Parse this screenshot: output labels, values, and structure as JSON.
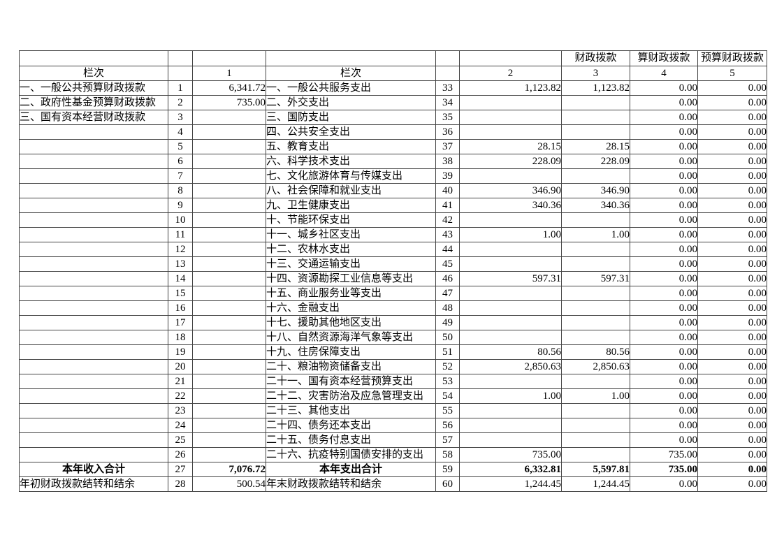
{
  "page": {
    "background_color": "#ffffff",
    "text_color": "#000000",
    "grid_color": "#444444"
  },
  "table": {
    "header_row1": {
      "col3": "财政拨款",
      "col4": "算财政拨款",
      "col5": "预算财政拨款"
    },
    "header_row2": {
      "left_lanci": "栏次",
      "col1": "1",
      "right_lanci": "栏次",
      "col2": "2",
      "col3": "3",
      "col4": "4",
      "col5": "5"
    },
    "rows": [
      {
        "left_label": "一、一般公共预算财政拨款",
        "left_no": "1",
        "col1": "6,341.72",
        "right_label": "一、一般公共服务支出",
        "right_no": "33",
        "col2": "1,123.82",
        "col3": "1,123.82",
        "col4": "0.00",
        "col5": "0.00"
      },
      {
        "left_label": "二、政府性基金预算财政拨款",
        "left_no": "2",
        "col1": "735.00",
        "right_label": "二、外交支出",
        "right_no": "34",
        "col2": "",
        "col3": "",
        "col4": "0.00",
        "col5": "0.00"
      },
      {
        "left_label": "三、国有资本经营财政拨款",
        "left_no": "3",
        "col1": "",
        "right_label": "三、国防支出",
        "right_no": "35",
        "col2": "",
        "col3": "",
        "col4": "0.00",
        "col5": "0.00"
      },
      {
        "left_label": "",
        "left_no": "4",
        "col1": "",
        "right_label": "四、公共安全支出",
        "right_no": "36",
        "col2": "",
        "col3": "",
        "col4": "0.00",
        "col5": "0.00"
      },
      {
        "left_label": "",
        "left_no": "5",
        "col1": "",
        "right_label": "五、教育支出",
        "right_no": "37",
        "col2": "28.15",
        "col3": "28.15",
        "col4": "0.00",
        "col5": "0.00"
      },
      {
        "left_label": "",
        "left_no": "6",
        "col1": "",
        "right_label": "六、科学技术支出",
        "right_no": "38",
        "col2": "228.09",
        "col3": "228.09",
        "col4": "0.00",
        "col5": "0.00"
      },
      {
        "left_label": "",
        "left_no": "7",
        "col1": "",
        "right_label": "七、文化旅游体育与传媒支出",
        "right_no": "39",
        "col2": "",
        "col3": "",
        "col4": "0.00",
        "col5": "0.00"
      },
      {
        "left_label": "",
        "left_no": "8",
        "col1": "",
        "right_label": "八、社会保障和就业支出",
        "right_no": "40",
        "col2": "346.90",
        "col3": "346.90",
        "col4": "0.00",
        "col5": "0.00"
      },
      {
        "left_label": "",
        "left_no": "9",
        "col1": "",
        "right_label": "九、卫生健康支出",
        "right_no": "41",
        "col2": "340.36",
        "col3": "340.36",
        "col4": "0.00",
        "col5": "0.00"
      },
      {
        "left_label": "",
        "left_no": "10",
        "col1": "",
        "right_label": "十、节能环保支出",
        "right_no": "42",
        "col2": "",
        "col3": "",
        "col4": "0.00",
        "col5": "0.00"
      },
      {
        "left_label": "",
        "left_no": "11",
        "col1": "",
        "right_label": "十一、城乡社区支出",
        "right_no": "43",
        "col2": "1.00",
        "col3": "1.00",
        "col4": "0.00",
        "col5": "0.00"
      },
      {
        "left_label": "",
        "left_no": "12",
        "col1": "",
        "right_label": "十二、农林水支出",
        "right_no": "44",
        "col2": "",
        "col3": "",
        "col4": "0.00",
        "col5": "0.00"
      },
      {
        "left_label": "",
        "left_no": "13",
        "col1": "",
        "right_label": "十三、交通运输支出",
        "right_no": "45",
        "col2": "",
        "col3": "",
        "col4": "0.00",
        "col5": "0.00"
      },
      {
        "left_label": "",
        "left_no": "14",
        "col1": "",
        "right_label": "十四、资源勘探工业信息等支出",
        "right_no": "46",
        "col2": "597.31",
        "col3": "597.31",
        "col4": "0.00",
        "col5": "0.00"
      },
      {
        "left_label": "",
        "left_no": "15",
        "col1": "",
        "right_label": "十五、商业服务业等支出",
        "right_no": "47",
        "col2": "",
        "col3": "",
        "col4": "0.00",
        "col5": "0.00"
      },
      {
        "left_label": "",
        "left_no": "16",
        "col1": "",
        "right_label": "十六、金融支出",
        "right_no": "48",
        "col2": "",
        "col3": "",
        "col4": "0.00",
        "col5": "0.00"
      },
      {
        "left_label": "",
        "left_no": "17",
        "col1": "",
        "right_label": "十七、援助其他地区支出",
        "right_no": "49",
        "col2": "",
        "col3": "",
        "col4": "0.00",
        "col5": "0.00"
      },
      {
        "left_label": "",
        "left_no": "18",
        "col1": "",
        "right_label": "十八、自然资源海洋气象等支出",
        "right_no": "50",
        "col2": "",
        "col3": "",
        "col4": "0.00",
        "col5": "0.00"
      },
      {
        "left_label": "",
        "left_no": "19",
        "col1": "",
        "right_label": "十九、住房保障支出",
        "right_no": "51",
        "col2": "80.56",
        "col3": "80.56",
        "col4": "0.00",
        "col5": "0.00"
      },
      {
        "left_label": "",
        "left_no": "20",
        "col1": "",
        "right_label": "二十、粮油物资储备支出",
        "right_no": "52",
        "col2": "2,850.63",
        "col3": "2,850.63",
        "col4": "0.00",
        "col5": "0.00"
      },
      {
        "left_label": "",
        "left_no": "21",
        "col1": "",
        "right_label": "二十一、国有资本经营预算支出",
        "right_no": "53",
        "col2": "",
        "col3": "",
        "col4": "0.00",
        "col5": "0.00"
      },
      {
        "left_label": "",
        "left_no": "22",
        "col1": "",
        "right_label": "二十二、灾害防治及应急管理支出",
        "right_no": "54",
        "col2": "1.00",
        "col3": "1.00",
        "col4": "0.00",
        "col5": "0.00"
      },
      {
        "left_label": "",
        "left_no": "23",
        "col1": "",
        "right_label": "二十三、其他支出",
        "right_no": "55",
        "col2": "",
        "col3": "",
        "col4": "0.00",
        "col5": "0.00"
      },
      {
        "left_label": "",
        "left_no": "24",
        "col1": "",
        "right_label": "二十四、债务还本支出",
        "right_no": "56",
        "col2": "",
        "col3": "",
        "col4": "0.00",
        "col5": "0.00"
      },
      {
        "left_label": "",
        "left_no": "25",
        "col1": "",
        "right_label": "二十五、债务付息支出",
        "right_no": "57",
        "col2": "",
        "col3": "",
        "col4": "0.00",
        "col5": "0.00"
      },
      {
        "left_label": "",
        "left_no": "26",
        "col1": "",
        "right_label": "二十六、抗疫特别国债安排的支出",
        "right_no": "58",
        "col2": "735.00",
        "col3": "",
        "col4": "735.00",
        "col5": "0.00"
      },
      {
        "left_label": "本年收入合计",
        "left_no": "27",
        "col1": "7,076.72",
        "right_label": "本年支出合计",
        "right_no": "59",
        "col2": "6,332.81",
        "col3": "5,597.81",
        "col4": "735.00",
        "col5": "0.00",
        "bold": true
      },
      {
        "left_label": "年初财政拨款结转和结余",
        "left_no": "28",
        "col1": "500.54",
        "right_label": "年末财政拨款结转和结余",
        "right_no": "60",
        "col2": "1,244.45",
        "col3": "1,244.45",
        "col4": "0.00",
        "col5": "0.00"
      }
    ]
  }
}
